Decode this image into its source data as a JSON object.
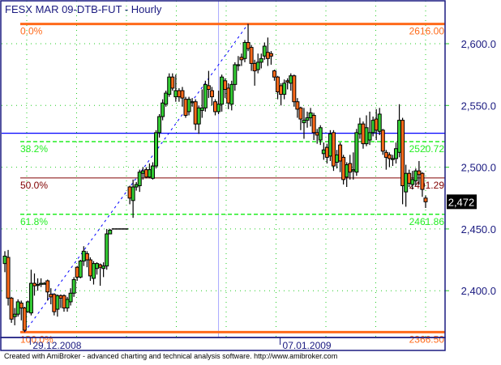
{
  "chart_data": {
    "type": "candlestick",
    "title": "FESX MAR 09-DTB-FUT - Hourly",
    "ylim": [
      2366.5,
      2616
    ],
    "y_ticks": [
      2600,
      2550,
      2500,
      2450,
      2400
    ],
    "y_tick_labels": [
      "2,600.0",
      "2,550.0",
      "2,500.0",
      "2,450.0",
      "2,400.0"
    ],
    "x_labels": [
      {
        "bar_index": 7,
        "label": "29.12.2008"
      },
      {
        "bar_index": 83,
        "label": "07.01.2009"
      }
    ],
    "grid": "dotted",
    "last_price": {
      "value": 2472,
      "label": "2,472"
    },
    "colors": {
      "up": "#33cc33",
      "down": "#ff6a1a",
      "axis": "#1a1a80",
      "grid": "#22cc22",
      "fib_extreme": "#ff6a1a",
      "fib_382": "#22ee22",
      "fib_50": "#800000",
      "fib_618": "#22ee22",
      "price_line": "#0000ff",
      "cursor": "#aaaaff",
      "trend": "#0000ff"
    },
    "fib_levels": [
      {
        "pct_label": "0.0%",
        "price": 2616.0,
        "price_label": "2616.00",
        "style": "solid-thick",
        "color": "#ff6a1a"
      },
      {
        "pct_label": "38.2%",
        "price": 2520.72,
        "price_label": "2520.72",
        "style": "dashed",
        "color": "#22ee22"
      },
      {
        "pct_label": "50.0%",
        "price": 2491.29,
        "price_label": "2491.29",
        "style": "solid",
        "color": "#800000"
      },
      {
        "pct_label": "61.8%",
        "price": 2461.86,
        "price_label": "2461.86",
        "style": "dashed",
        "color": "#22ee22"
      },
      {
        "pct_label": "100.0%",
        "price": 2366.5,
        "price_label": "2366.50",
        "style": "solid-thick",
        "color": "#ff6a1a"
      }
    ],
    "horizontal_line_price": 2527.5,
    "cursor_bar_index": 65,
    "trendline": {
      "from": {
        "bar_index": 6,
        "price": 2366.5
      },
      "to": {
        "bar_index": 74,
        "price": 2616
      }
    },
    "ohlc_columns": [
      "open",
      "high",
      "low",
      "close"
    ],
    "candles": [
      [
        2422,
        2432,
        2415,
        2428
      ],
      [
        2427,
        2433,
        2388,
        2394
      ],
      [
        2394,
        2395,
        2374,
        2377
      ],
      [
        2379,
        2386,
        2372,
        2381
      ],
      [
        2381,
        2393,
        2379,
        2391
      ],
      [
        2390,
        2392,
        2376,
        2386
      ],
      [
        2386,
        2387,
        2366.5,
        2368
      ],
      [
        2383,
        2392,
        2382,
        2391
      ],
      [
        2382,
        2417,
        2380,
        2406
      ],
      [
        2406,
        2414,
        2396,
        2404
      ],
      [
        2405,
        2410,
        2400,
        2405
      ],
      [
        2406,
        2410,
        2403,
        2406
      ],
      [
        2406,
        2407,
        2405,
        2406
      ],
      [
        2408,
        2409,
        2392,
        2399
      ],
      [
        2397,
        2402,
        2389,
        2395
      ],
      [
        2397,
        2398,
        2380,
        2383
      ],
      [
        2385,
        2397,
        2379,
        2396
      ],
      [
        2396,
        2397,
        2386,
        2394
      ],
      [
        2396,
        2397,
        2383,
        2386
      ],
      [
        2386,
        2395,
        2383,
        2393
      ],
      [
        2391,
        2402,
        2388,
        2398
      ],
      [
        2398,
        2411,
        2395,
        2409
      ],
      [
        2419,
        2420,
        2408,
        2411
      ],
      [
        2411,
        2425,
        2410,
        2424
      ],
      [
        2424,
        2436,
        2420,
        2432
      ],
      [
        2430,
        2432,
        2419,
        2425
      ],
      [
        2425,
        2427,
        2408,
        2412
      ],
      [
        2410,
        2424,
        2405,
        2422
      ],
      [
        2418,
        2423,
        2413,
        2422
      ],
      [
        2421,
        2422,
        2404,
        2419
      ],
      [
        2418,
        2423,
        2411,
        2420
      ],
      [
        2420,
        2450,
        2417,
        2446
      ],
      [
        2446,
        2450,
        2446,
        2449
      ],
      [
        2450,
        2450,
        2450,
        2450
      ],
      [
        2450,
        2450,
        2450,
        2450
      ],
      [
        2450,
        2450,
        2450,
        2450
      ],
      [
        2450,
        2450,
        2450,
        2450
      ],
      [
        2450,
        2450,
        2450,
        2450
      ],
      [
        2484,
        2485,
        2470,
        2475
      ],
      [
        2473,
        2490,
        2459,
        2484
      ],
      [
        2484,
        2488,
        2481,
        2486
      ],
      [
        2485,
        2498,
        2480,
        2496
      ],
      [
        2495,
        2500,
        2490,
        2497
      ],
      [
        2498,
        2500,
        2491,
        2492
      ],
      [
        2492,
        2503,
        2491,
        2498
      ],
      [
        2491,
        2504,
        2490,
        2501
      ],
      [
        2501,
        2530,
        2499,
        2528
      ],
      [
        2528,
        2543,
        2524,
        2541
      ],
      [
        2541,
        2555,
        2538,
        2552
      ],
      [
        2551,
        2562,
        2549,
        2560
      ],
      [
        2559,
        2576,
        2557,
        2573
      ],
      [
        2573,
        2576,
        2562,
        2564
      ],
      [
        2557,
        2575,
        2553,
        2562
      ],
      [
        2562,
        2564,
        2553,
        2557
      ],
      [
        2562,
        2565,
        2549,
        2556
      ],
      [
        2555,
        2557,
        2540,
        2542
      ],
      [
        2545,
        2557,
        2542,
        2555
      ],
      [
        2553,
        2556,
        2549,
        2553
      ],
      [
        2553,
        2555,
        2530,
        2535
      ],
      [
        2535,
        2550,
        2527,
        2548
      ],
      [
        2546,
        2563,
        2540,
        2548
      ],
      [
        2548,
        2570,
        2545,
        2567
      ],
      [
        2566,
        2578,
        2556,
        2563
      ],
      [
        2562,
        2565,
        2550,
        2557
      ],
      [
        2553,
        2555,
        2542,
        2545
      ],
      [
        2545,
        2562,
        2543,
        2551
      ],
      [
        2551,
        2575,
        2545,
        2573
      ],
      [
        2570,
        2572,
        2556,
        2563
      ],
      [
        2564,
        2568,
        2547,
        2552
      ],
      [
        2551,
        2570,
        2546,
        2567
      ],
      [
        2567,
        2585,
        2562,
        2583
      ],
      [
        2583,
        2590,
        2578,
        2583
      ],
      [
        2589,
        2592,
        2582,
        2587
      ],
      [
        2588,
        2603,
        2585,
        2601
      ],
      [
        2601,
        2616,
        2594,
        2596
      ],
      [
        2597,
        2599,
        2578,
        2584
      ],
      [
        2584,
        2587,
        2566,
        2578
      ],
      [
        2579,
        2592,
        2576,
        2585
      ],
      [
        2585,
        2592,
        2580,
        2588
      ],
      [
        2590,
        2601,
        2587,
        2598
      ],
      [
        2593,
        2605,
        2582,
        2588
      ],
      [
        2592,
        2594,
        2583,
        2590
      ],
      [
        2578,
        2579,
        2570,
        2573
      ],
      [
        2573,
        2574,
        2555,
        2561
      ],
      [
        2566,
        2568,
        2550,
        2559
      ],
      [
        2559,
        2571,
        2555,
        2568
      ],
      [
        2570,
        2572,
        2563,
        2569
      ],
      [
        2568,
        2576,
        2562,
        2574
      ],
      [
        2574,
        2575,
        2549,
        2553
      ],
      [
        2553,
        2556,
        2540,
        2547
      ],
      [
        2548,
        2549,
        2530,
        2539
      ],
      [
        2536,
        2548,
        2523,
        2538
      ],
      [
        2538,
        2545,
        2532,
        2540
      ],
      [
        2540,
        2548,
        2533,
        2544
      ],
      [
        2542,
        2544,
        2522,
        2528
      ],
      [
        2528,
        2531,
        2519,
        2526
      ],
      [
        2522,
        2534,
        2518,
        2532
      ],
      [
        2511,
        2520,
        2506,
        2514
      ],
      [
        2516,
        2519,
        2503,
        2508
      ],
      [
        2509,
        2530,
        2505,
        2527
      ],
      [
        2528,
        2530,
        2497,
        2501
      ],
      [
        2504,
        2514,
        2499,
        2510
      ],
      [
        2518,
        2520,
        2496,
        2505
      ],
      [
        2508,
        2510,
        2486,
        2490
      ],
      [
        2492,
        2504,
        2484,
        2502
      ],
      [
        2503,
        2510,
        2490,
        2496
      ],
      [
        2497,
        2512,
        2490,
        2498
      ],
      [
        2496,
        2531,
        2493,
        2528
      ],
      [
        2527,
        2540,
        2523,
        2535
      ],
      [
        2535,
        2537,
        2515,
        2519
      ],
      [
        2519,
        2542,
        2517,
        2532
      ],
      [
        2522,
        2545,
        2518,
        2528
      ],
      [
        2528,
        2541,
        2525,
        2538
      ],
      [
        2539,
        2547,
        2522,
        2530
      ],
      [
        2529,
        2548,
        2526,
        2543
      ],
      [
        2530,
        2531,
        2510,
        2513
      ],
      [
        2512,
        2514,
        2498,
        2508
      ],
      [
        2510,
        2512,
        2500,
        2507
      ],
      [
        2507,
        2510,
        2501,
        2507
      ],
      [
        2507,
        2520,
        2503,
        2515
      ],
      [
        2512,
        2551,
        2508,
        2538
      ],
      [
        2538,
        2540,
        2470,
        2485
      ],
      [
        2480,
        2502,
        2468,
        2495
      ],
      [
        2495,
        2498,
        2484,
        2487
      ],
      [
        2486,
        2497,
        2482,
        2490
      ],
      [
        2489,
        2499,
        2485,
        2497
      ],
      [
        2497,
        2505,
        2486,
        2494
      ],
      [
        2495,
        2496,
        2476,
        2482
      ],
      [
        2475,
        2477,
        2467,
        2472
      ]
    ]
  },
  "footer": "Created with AmiBroker - advanced charting and technical analysis software. http://www.amibroker.com"
}
